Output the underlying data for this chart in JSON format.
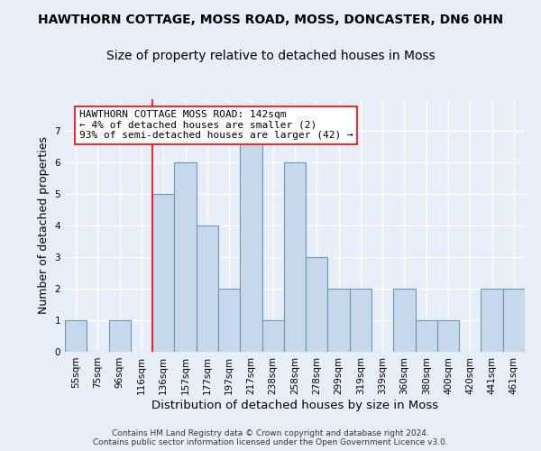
{
  "title1": "HAWTHORN COTTAGE, MOSS ROAD, MOSS, DONCASTER, DN6 0HN",
  "title2": "Size of property relative to detached houses in Moss",
  "xlabel": "Distribution of detached houses by size in Moss",
  "ylabel": "Number of detached properties",
  "footnote": "Contains HM Land Registry data © Crown copyright and database right 2024.\nContains public sector information licensed under the Open Government Licence v3.0.",
  "categories": [
    "55sqm",
    "75sqm",
    "96sqm",
    "116sqm",
    "136sqm",
    "157sqm",
    "177sqm",
    "197sqm",
    "217sqm",
    "238sqm",
    "258sqm",
    "278sqm",
    "299sqm",
    "319sqm",
    "339sqm",
    "360sqm",
    "380sqm",
    "400sqm",
    "420sqm",
    "441sqm",
    "461sqm"
  ],
  "values": [
    1,
    0,
    1,
    0,
    5,
    6,
    4,
    2,
    7,
    1,
    6,
    3,
    2,
    2,
    0,
    2,
    1,
    1,
    0,
    2,
    2
  ],
  "bar_color": "#c8d8eb",
  "bar_edge_color": "#6699bb",
  "property_line_x": 3.5,
  "property_line_color": "red",
  "annotation_text": "HAWTHORN COTTAGE MOSS ROAD: 142sqm\n← 4% of detached houses are smaller (2)\n93% of semi-detached houses are larger (42) →",
  "annotation_box_color": "white",
  "annotation_box_edge_color": "red",
  "ylim": [
    0,
    8
  ],
  "yticks": [
    0,
    1,
    2,
    3,
    4,
    5,
    6,
    7,
    8
  ],
  "background_color": "#e8eef8",
  "plot_background_color": "#e8eef8",
  "grid_color": "white",
  "title1_fontsize": 10,
  "title2_fontsize": 10,
  "xlabel_fontsize": 9.5,
  "ylabel_fontsize": 9,
  "annotation_fontsize": 8,
  "tick_fontsize": 7.5,
  "footnote_fontsize": 6.5
}
